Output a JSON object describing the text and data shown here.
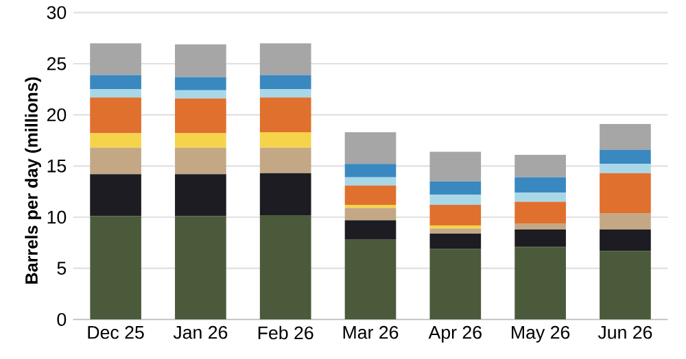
{
  "chart_data": {
    "type": "bar",
    "stacked": true,
    "ylabel": "Barrels per day (millions)",
    "categories": [
      "Dec 25",
      "Jan 26",
      "Feb 26",
      "Mar 26",
      "Apr 26",
      "May 26",
      "Jun 26"
    ],
    "series": [
      {
        "color": "#4b5a3a",
        "values": [
          10.1,
          10.1,
          10.2,
          7.8,
          6.9,
          7.1,
          6.7
        ]
      },
      {
        "color": "#1c1c22",
        "values": [
          4.1,
          4.1,
          4.1,
          1.9,
          1.5,
          1.7,
          2.1
        ]
      },
      {
        "color": "#c4a886",
        "values": [
          2.6,
          2.6,
          2.5,
          1.2,
          0.5,
          0.6,
          1.6
        ]
      },
      {
        "color": "#f5d44a",
        "values": [
          1.4,
          1.4,
          1.5,
          0.3,
          0.3,
          0,
          0
        ]
      },
      {
        "color": "#e0702e",
        "values": [
          3.5,
          3.4,
          3.4,
          1.9,
          2.0,
          2.1,
          3.9
        ]
      },
      {
        "color": "#a8d8e8",
        "values": [
          0.8,
          0.8,
          0.8,
          0.8,
          1.0,
          0.9,
          0.9
        ]
      },
      {
        "color": "#3a88c0",
        "values": [
          1.4,
          1.3,
          1.4,
          1.3,
          1.3,
          1.5,
          1.4
        ]
      },
      {
        "color": "#a6a6a6",
        "values": [
          3.1,
          3.2,
          3.1,
          3.1,
          2.9,
          2.2,
          2.5
        ]
      }
    ],
    "ylim": [
      0,
      30
    ],
    "yticks": [
      0,
      5,
      10,
      15,
      20,
      25,
      30
    ],
    "grid": "y"
  }
}
